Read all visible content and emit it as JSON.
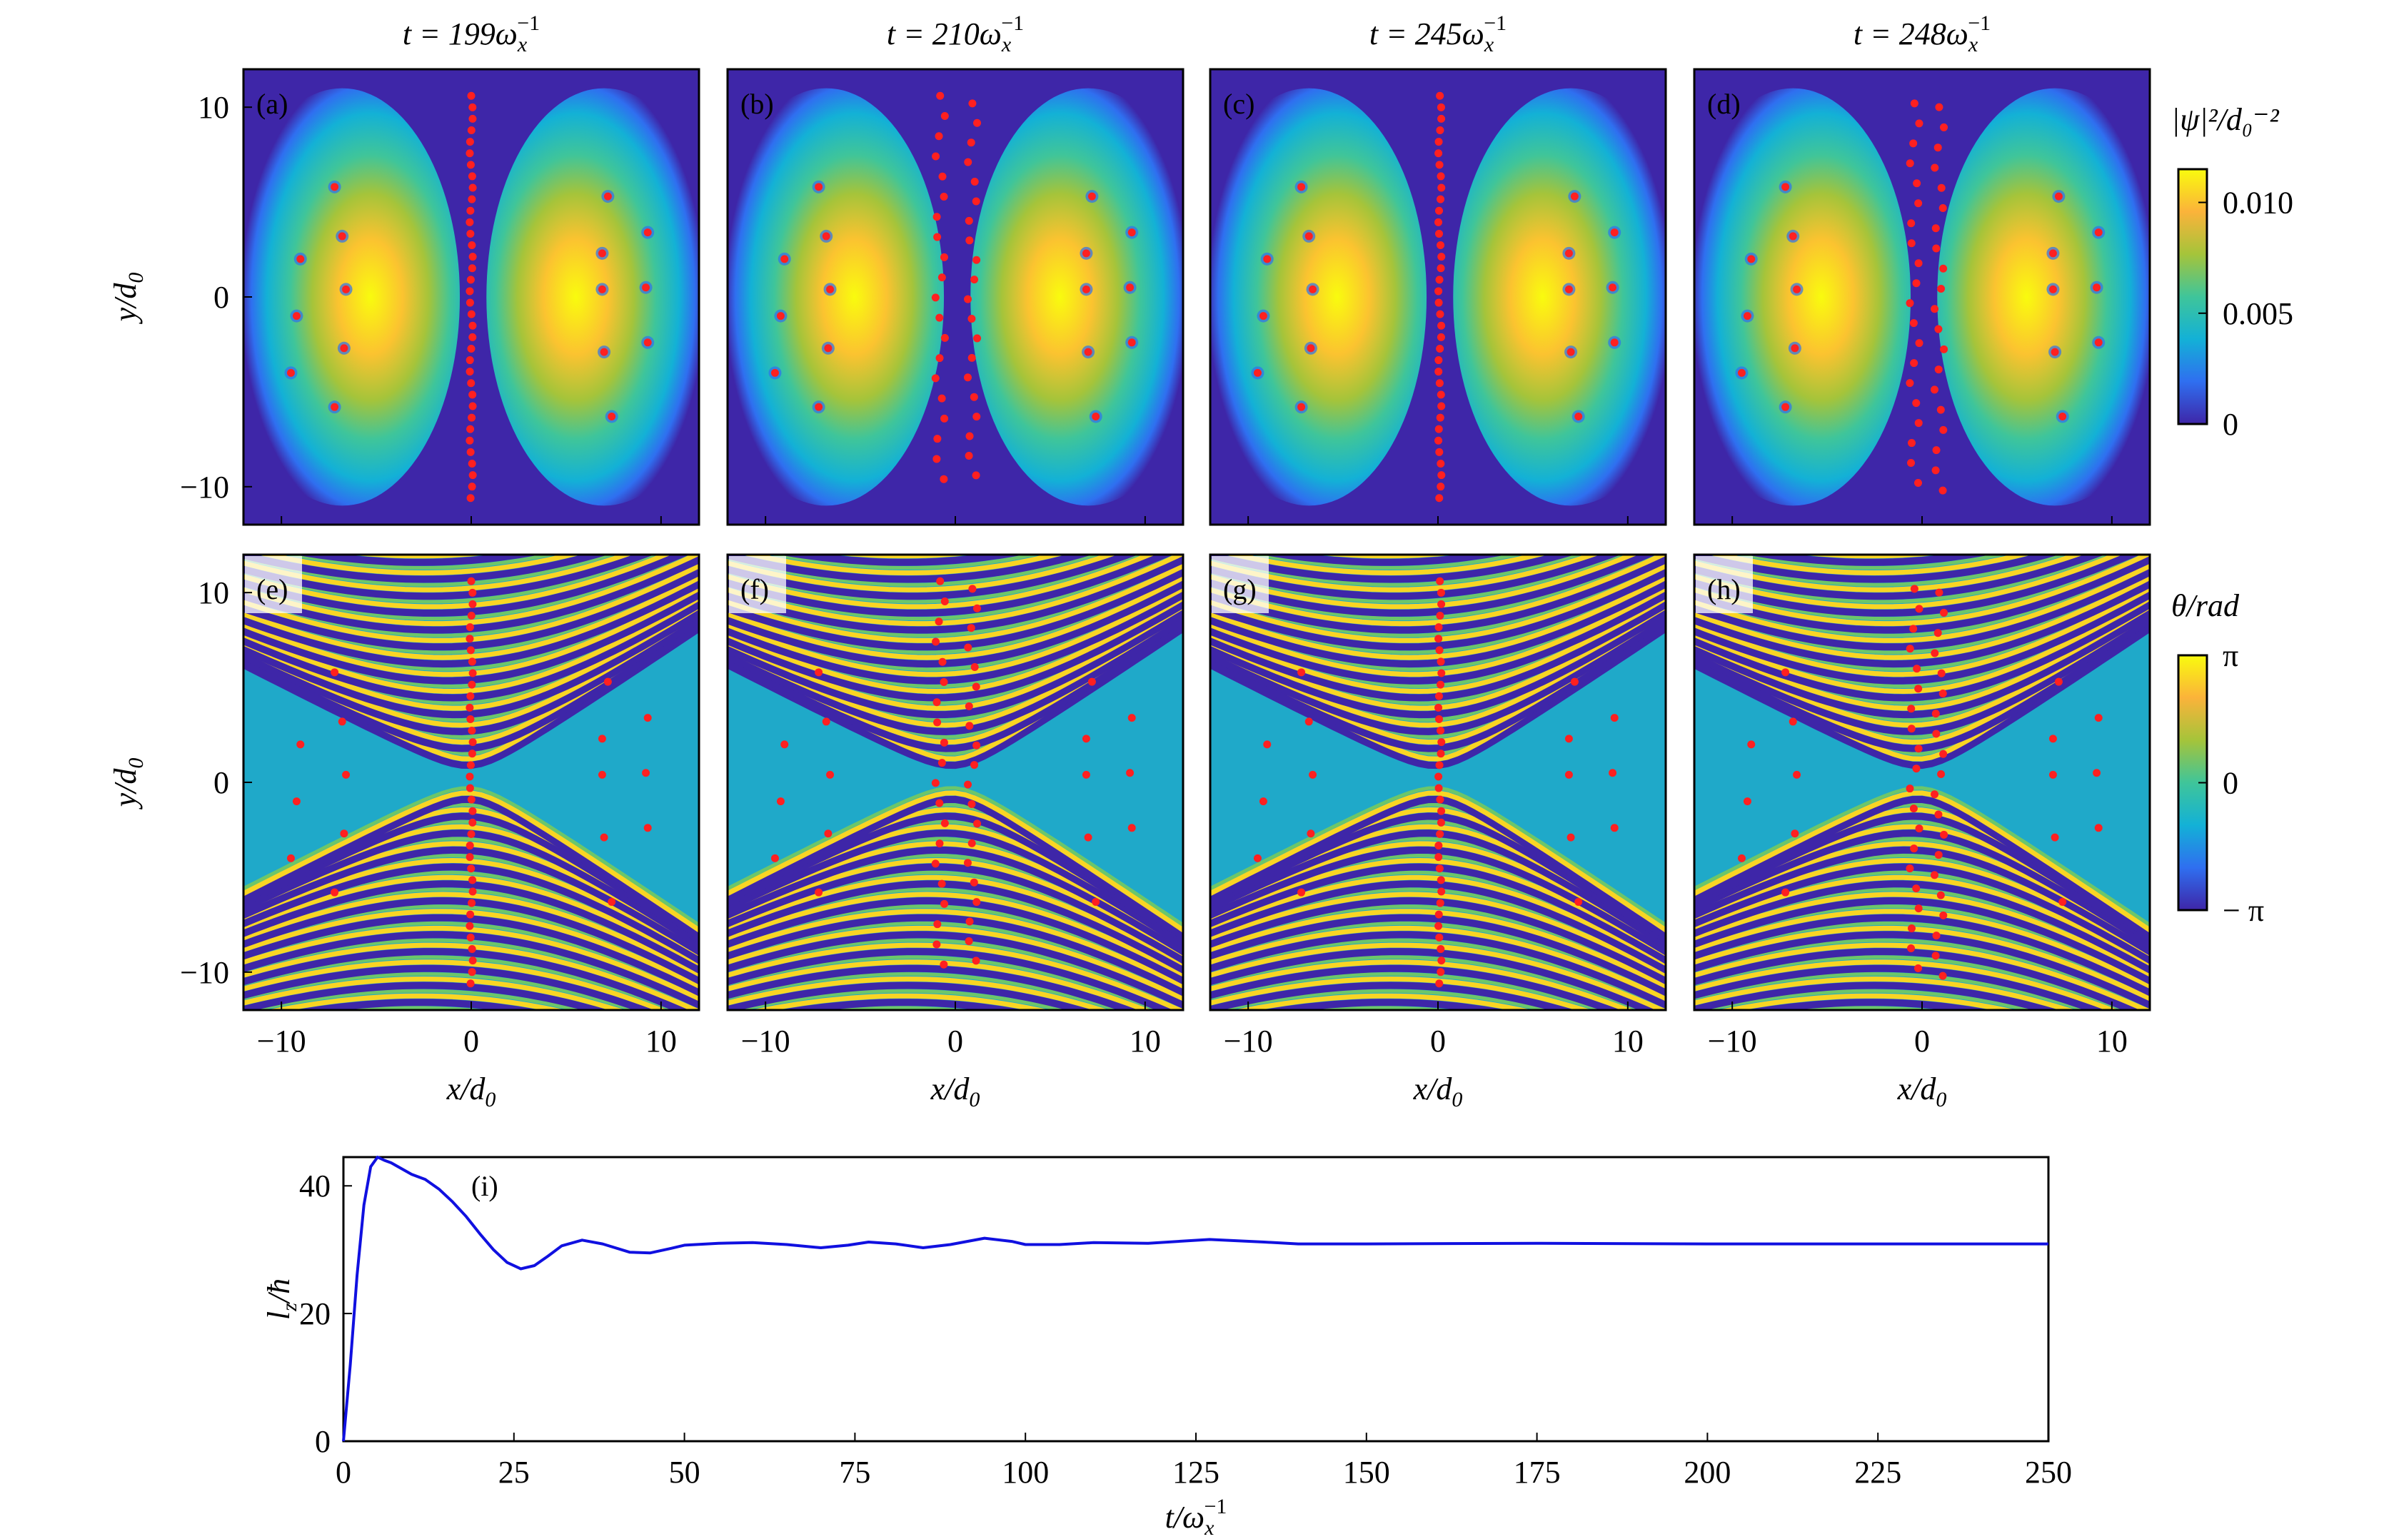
{
  "colors": {
    "background_density": "#3e26a8",
    "parula": [
      "#3e26a8",
      "#2f6ff0",
      "#13b1d6",
      "#3fc59a",
      "#a5c43a",
      "#fbb33a",
      "#f9fb0e"
    ],
    "vortex": "#ff2020",
    "line": "#1010e0"
  },
  "chart_data": [
    {
      "type": "heatmap",
      "rows": [
        {
          "kind": "density",
          "ylabel": {
            "base": "y/d",
            "sub": "0"
          },
          "panels": [
            {
              "label": "(a)",
              "title": {
                "prefix": "t = 199ω",
                "sub": "x",
                "sup": "−1"
              },
              "center_columns": [
                {
                  "x": 0,
                  "y_top": 10.6,
                  "y_bottom": -10.6,
                  "count": 36
                }
              ],
              "left_shift": 0
            },
            {
              "label": "(b)",
              "title": {
                "prefix": "t = 210ω",
                "sub": "x",
                "sup": "−1"
              },
              "center_columns": [
                {
                  "x": -0.8,
                  "y_top": 10.6,
                  "y_bottom": -9.6,
                  "count": 20
                },
                {
                  "x": 0.9,
                  "y_top": 10.2,
                  "y_bottom": -9.4,
                  "count": 20
                }
              ],
              "left_shift": 0
            },
            {
              "label": "(c)",
              "title": {
                "prefix": "t = 245ω",
                "sub": "x",
                "sup": "−1"
              },
              "center_columns": [
                {
                  "x": 0.1,
                  "y_top": 10.6,
                  "y_bottom": -10.6,
                  "count": 36
                }
              ],
              "left_shift": 0
            },
            {
              "label": "(d)",
              "title": {
                "prefix": "t = 248ω",
                "sub": "x",
                "sup": "−1"
              },
              "center_columns": [
                {
                  "x": -0.4,
                  "y_top": 10.2,
                  "y_bottom": -9.8,
                  "count": 20
                },
                {
                  "x": 0.9,
                  "y_top": 10.0,
                  "y_bottom": -10.2,
                  "count": 20
                }
              ],
              "left_shift": 0
            }
          ],
          "colorbar": {
            "title": "|ψ|²/d₀⁻²",
            "ticks": [
              "0.010",
              "0.005",
              "0"
            ],
            "tick_values": [
              0.01,
              0.005,
              0
            ],
            "range": [
              0,
              0.0115
            ]
          }
        },
        {
          "kind": "phase",
          "ylabel": {
            "base": "y/d",
            "sub": "0"
          },
          "xlabel": {
            "base": "x/d",
            "sub": "0"
          },
          "panels": [
            {
              "label": "(e)"
            },
            {
              "label": "(f)"
            },
            {
              "label": "(g)"
            },
            {
              "label": "(h)"
            }
          ],
          "colorbar": {
            "title": "θ/rad",
            "ticks": [
              "π",
              "0",
              "− π"
            ],
            "tick_values": [
              3.1416,
              0,
              -3.1416
            ],
            "range": [
              -3.1416,
              3.1416
            ]
          }
        }
      ],
      "x_range": [
        -12,
        12
      ],
      "y_range": [
        -12,
        12
      ],
      "x_ticks": [
        "−10",
        "0",
        "10"
      ],
      "x_tick_values": [
        -10,
        0,
        10
      ],
      "y_ticks": [
        "10",
        "0",
        "−10"
      ],
      "y_tick_values": [
        10,
        0,
        -10
      ],
      "side_vortices": [
        [
          -7.2,
          5.8
        ],
        [
          -6.8,
          3.2
        ],
        [
          -6.6,
          0.4
        ],
        [
          -6.7,
          -2.7
        ],
        [
          -9.0,
          2.0
        ],
        [
          -9.2,
          -1.0
        ],
        [
          -9.5,
          -4.0
        ],
        [
          -7.2,
          -5.8
        ],
        [
          7.2,
          5.3
        ],
        [
          6.9,
          2.3
        ],
        [
          6.9,
          0.4
        ],
        [
          7.0,
          -2.9
        ],
        [
          9.3,
          3.4
        ],
        [
          9.2,
          0.5
        ],
        [
          9.3,
          -2.4
        ],
        [
          7.4,
          -6.3
        ]
      ]
    },
    {
      "type": "line",
      "label": "(i)",
      "xlabel": {
        "base": "t/ω",
        "sub": "x",
        "sup": "−1"
      },
      "ylabel": {
        "base": "l",
        "sub": "z",
        "tail": "/ħ"
      },
      "xlim": [
        0,
        250
      ],
      "ylim": [
        0,
        44.5
      ],
      "x_ticks": [
        "0",
        "25",
        "50",
        "75",
        "100",
        "125",
        "150",
        "175",
        "200",
        "225",
        "250"
      ],
      "x_tick_values": [
        0,
        25,
        50,
        75,
        100,
        125,
        150,
        175,
        200,
        225,
        250
      ],
      "y_ticks": [
        "0",
        "20",
        "40"
      ],
      "y_tick_values": [
        0,
        20,
        40
      ],
      "series": [
        {
          "name": "lz",
          "x": [
            0,
            1,
            2,
            3,
            4,
            5,
            6,
            7,
            8,
            10,
            12,
            14,
            16,
            18,
            20,
            22,
            24,
            26,
            28,
            30,
            32,
            35,
            38,
            42,
            45,
            48,
            50,
            55,
            60,
            65,
            70,
            74,
            77,
            81,
            85,
            89,
            94,
            98,
            100,
            105,
            110,
            118,
            127,
            135,
            140,
            150,
            175,
            200,
            225,
            250
          ],
          "y": [
            0,
            12,
            26,
            37,
            43,
            44.5,
            44,
            43.6,
            43,
            41.8,
            41,
            39.5,
            37.5,
            35.2,
            32.5,
            30,
            28,
            27,
            27.5,
            29,
            30.6,
            31.5,
            30.9,
            29.6,
            29.5,
            30.2,
            30.7,
            31,
            31.1,
            30.8,
            30.3,
            30.7,
            31.2,
            30.9,
            30.3,
            30.8,
            31.8,
            31.3,
            30.8,
            30.8,
            31.1,
            31.0,
            31.6,
            31.2,
            30.9,
            30.9,
            31.0,
            30.9,
            30.9,
            30.9
          ]
        }
      ]
    }
  ]
}
